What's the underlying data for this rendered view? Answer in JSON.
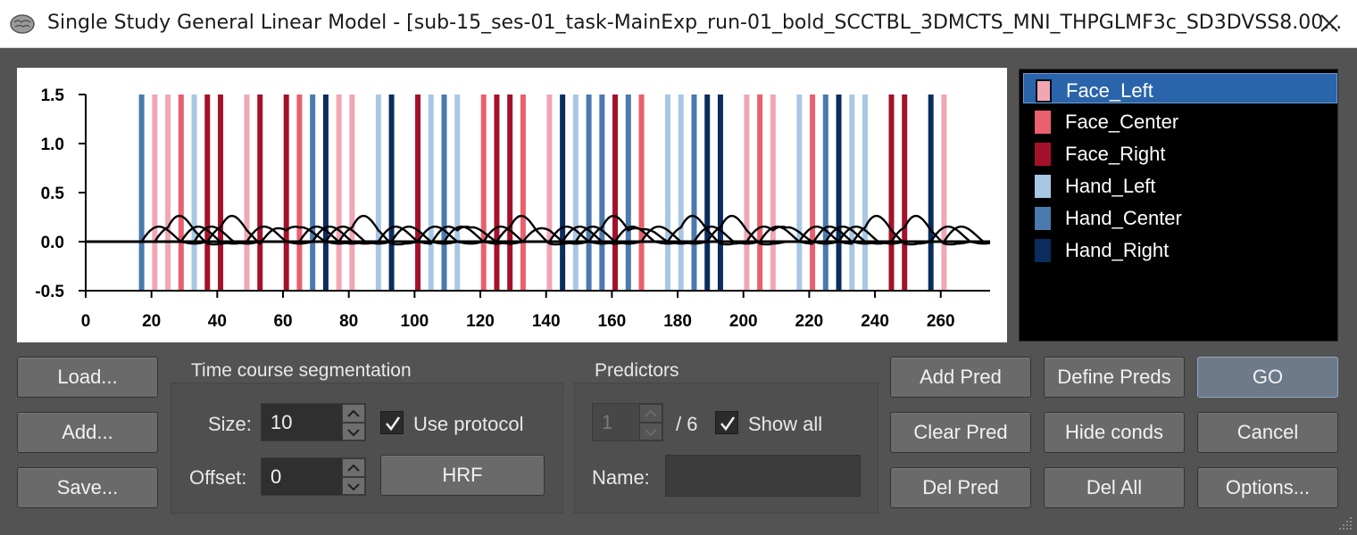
{
  "window": {
    "title": "Single Study General Linear Model - [sub-15_ses-01_task-MainExp_run-01_bold_SCCTBL_3DMCTS_MNI_THPGLMF3c_SD3DVSS8.00...",
    "close_icon": "close-icon",
    "app_icon": "brain-icon"
  },
  "colors": {
    "Face_Left": "#f2a6b4",
    "Face_Center": "#e9606e",
    "Face_Right": "#a3112a",
    "Hand_Left": "#a8c7e4",
    "Hand_Center": "#4a7aae",
    "Hand_Right": "#0b2d5e",
    "selected_bg": "#2a64aa"
  },
  "chart_data": {
    "type": "line",
    "title": "",
    "xlabel": "",
    "ylabel": "",
    "xlim": [
      0,
      275
    ],
    "ylim": [
      -0.5,
      1.5
    ],
    "x_ticks": [
      "0",
      "20",
      "40",
      "60",
      "80",
      "100",
      "120",
      "140",
      "160",
      "180",
      "200",
      "220",
      "240",
      "260"
    ],
    "y_ticks": [
      "1.5",
      "1.0",
      "0.5",
      "0.0",
      "-0.5"
    ],
    "condition_onsets": [
      {
        "time": 17,
        "condition": "Hand_Center"
      },
      {
        "time": 21,
        "condition": "Face_Left"
      },
      {
        "time": 25,
        "condition": "Face_Left"
      },
      {
        "time": 29,
        "condition": "Face_Center"
      },
      {
        "time": 33,
        "condition": "Hand_Left"
      },
      {
        "time": 37,
        "condition": "Face_Right"
      },
      {
        "time": 41,
        "condition": "Face_Right"
      },
      {
        "time": 49,
        "condition": "Face_Left"
      },
      {
        "time": 53,
        "condition": "Face_Right"
      },
      {
        "time": 61,
        "condition": "Face_Right"
      },
      {
        "time": 65,
        "condition": "Face_Center"
      },
      {
        "time": 69,
        "condition": "Hand_Center"
      },
      {
        "time": 73,
        "condition": "Hand_Right"
      },
      {
        "time": 77,
        "condition": "Face_Left"
      },
      {
        "time": 81,
        "condition": "Face_Left"
      },
      {
        "time": 89,
        "condition": "Hand_Left"
      },
      {
        "time": 93,
        "condition": "Hand_Right"
      },
      {
        "time": 101,
        "condition": "Face_Right"
      },
      {
        "time": 105,
        "condition": "Hand_Left"
      },
      {
        "time": 109,
        "condition": "Hand_Center"
      },
      {
        "time": 113,
        "condition": "Hand_Left"
      },
      {
        "time": 121,
        "condition": "Face_Center"
      },
      {
        "time": 125,
        "condition": "Face_Right"
      },
      {
        "time": 129,
        "condition": "Face_Right"
      },
      {
        "time": 133,
        "condition": "Face_Center"
      },
      {
        "time": 141,
        "condition": "Face_Left"
      },
      {
        "time": 145,
        "condition": "Hand_Right"
      },
      {
        "time": 149,
        "condition": "Hand_Left"
      },
      {
        "time": 153,
        "condition": "Hand_Center"
      },
      {
        "time": 157,
        "condition": "Hand_Center"
      },
      {
        "time": 161,
        "condition": "Face_Right"
      },
      {
        "time": 165,
        "condition": "Hand_Center"
      },
      {
        "time": 169,
        "condition": "Face_Center"
      },
      {
        "time": 177,
        "condition": "Hand_Left"
      },
      {
        "time": 181,
        "condition": "Hand_Left"
      },
      {
        "time": 185,
        "condition": "Hand_Center"
      },
      {
        "time": 189,
        "condition": "Hand_Right"
      },
      {
        "time": 193,
        "condition": "Hand_Right"
      },
      {
        "time": 201,
        "condition": "Face_Left"
      },
      {
        "time": 205,
        "condition": "Face_Center"
      },
      {
        "time": 209,
        "condition": "Face_Left"
      },
      {
        "time": 217,
        "condition": "Hand_Left"
      },
      {
        "time": 221,
        "condition": "Face_Center"
      },
      {
        "time": 225,
        "condition": "Hand_Center"
      },
      {
        "time": 229,
        "condition": "Hand_Right"
      },
      {
        "time": 233,
        "condition": "Hand_Left"
      },
      {
        "time": 237,
        "condition": "Hand_Left"
      },
      {
        "time": 245,
        "condition": "Face_Right"
      },
      {
        "time": 249,
        "condition": "Face_Right"
      },
      {
        "time": 257,
        "condition": "Hand_Right"
      },
      {
        "time": 261,
        "condition": "Face_Left"
      }
    ]
  },
  "predictors_list": {
    "items": [
      {
        "label": "Face_Left",
        "selected": true
      },
      {
        "label": "Face_Center",
        "selected": false
      },
      {
        "label": "Face_Right",
        "selected": false
      },
      {
        "label": "Hand_Left",
        "selected": false
      },
      {
        "label": "Hand_Center",
        "selected": false
      },
      {
        "label": "Hand_Right",
        "selected": false
      }
    ]
  },
  "buttons": {
    "load": "Load...",
    "add": "Add...",
    "save": "Save...",
    "hrf": "HRF",
    "add_pred": "Add Pred",
    "define_preds": "Define Preds",
    "go": "GO",
    "clear_pred": "Clear Pred",
    "hide_conds": "Hide conds",
    "cancel": "Cancel",
    "del_pred": "Del Pred",
    "del_all": "Del All",
    "options": "Options..."
  },
  "segmentation": {
    "title": "Time course segmentation",
    "size_label": "Size:",
    "size_value": "10",
    "offset_label": "Offset:",
    "offset_value": "0",
    "use_protocol_label": "Use protocol",
    "use_protocol_checked": true
  },
  "predictors_group": {
    "title": "Predictors",
    "index_value": "1",
    "total_label": "/ 6",
    "show_all_label": "Show all",
    "show_all_checked": true,
    "name_label": "Name:",
    "name_value": ""
  }
}
